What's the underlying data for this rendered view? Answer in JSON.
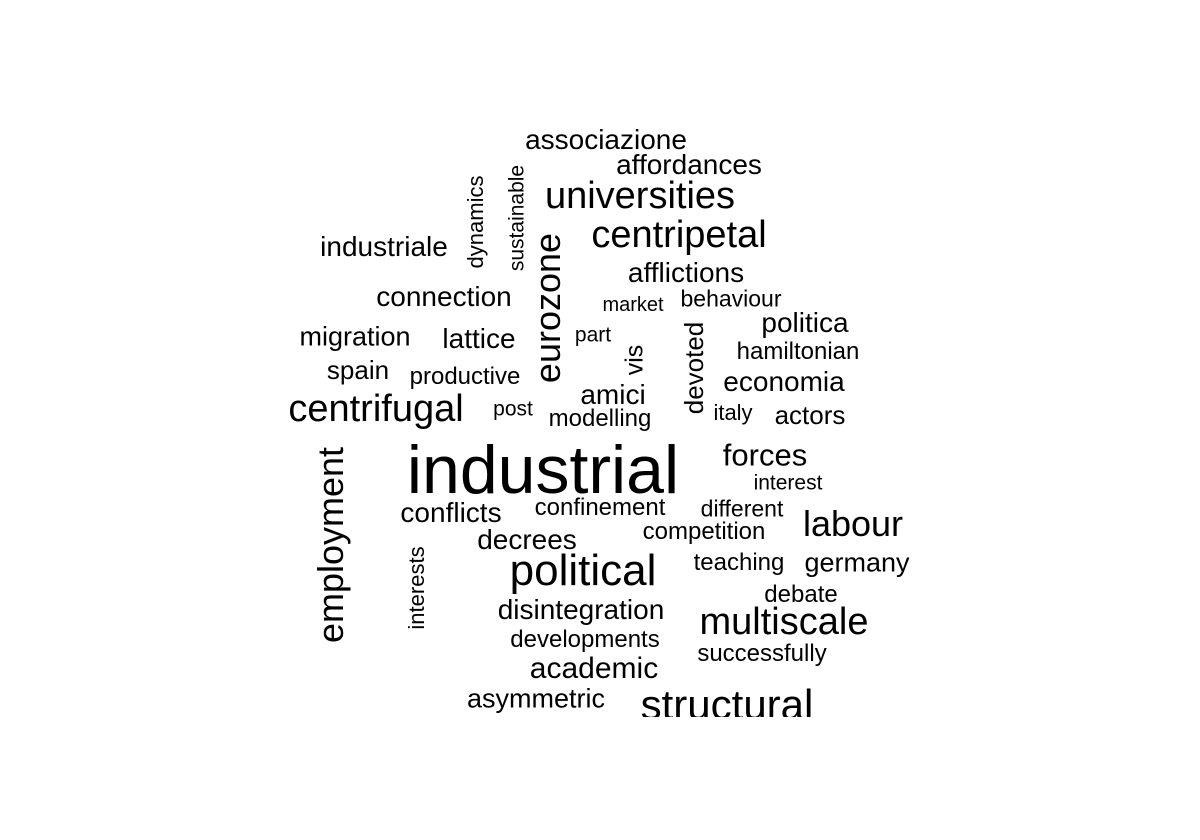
{
  "words": [
    {
      "text": "industrial",
      "weight": 10
    },
    {
      "text": "political",
      "weight": 6
    },
    {
      "text": "structural",
      "weight": 6
    },
    {
      "text": "centrifugal",
      "weight": 5
    },
    {
      "text": "employment",
      "weight": 5
    },
    {
      "text": "multiscale",
      "weight": 5
    },
    {
      "text": "universities",
      "weight": 5
    },
    {
      "text": "centripetal",
      "weight": 5
    },
    {
      "text": "eurozone",
      "weight": 5
    },
    {
      "text": "labour",
      "weight": 5
    },
    {
      "text": "forces",
      "weight": 4
    },
    {
      "text": "academic",
      "weight": 4
    },
    {
      "text": "disintegration",
      "weight": 4
    },
    {
      "text": "decrees",
      "weight": 4
    },
    {
      "text": "conflicts",
      "weight": 4
    },
    {
      "text": "associazione",
      "weight": 4
    },
    {
      "text": "affordances",
      "weight": 4
    },
    {
      "text": "afflictions",
      "weight": 4
    },
    {
      "text": "industriale",
      "weight": 4
    },
    {
      "text": "connection",
      "weight": 4
    },
    {
      "text": "migration",
      "weight": 4
    },
    {
      "text": "lattice",
      "weight": 4
    },
    {
      "text": "politica",
      "weight": 4
    },
    {
      "text": "economia",
      "weight": 4
    },
    {
      "text": "amici",
      "weight": 4
    },
    {
      "text": "actors",
      "weight": 3
    },
    {
      "text": "germany",
      "weight": 3
    },
    {
      "text": "asymmetric",
      "weight": 3
    },
    {
      "text": "devoted",
      "weight": 3
    },
    {
      "text": "vis",
      "weight": 3
    },
    {
      "text": "spain",
      "weight": 3
    },
    {
      "text": "hamiltonian",
      "weight": 3
    },
    {
      "text": "productive",
      "weight": 3
    },
    {
      "text": "modelling",
      "weight": 3
    },
    {
      "text": "teaching",
      "weight": 3
    },
    {
      "text": "competition",
      "weight": 3
    },
    {
      "text": "confinement",
      "weight": 3
    },
    {
      "text": "different",
      "weight": 3
    },
    {
      "text": "debate",
      "weight": 3
    },
    {
      "text": "successfully",
      "weight": 3
    },
    {
      "text": "developments",
      "weight": 3
    },
    {
      "text": "behaviour",
      "weight": 3
    },
    {
      "text": "dynamics",
      "weight": 3
    },
    {
      "text": "sustainable",
      "weight": 3
    },
    {
      "text": "interests",
      "weight": 3
    },
    {
      "text": "italy",
      "weight": 2
    },
    {
      "text": "interest",
      "weight": 2
    },
    {
      "text": "post",
      "weight": 2
    },
    {
      "text": "part",
      "weight": 2
    },
    {
      "text": "market",
      "weight": 2
    }
  ]
}
